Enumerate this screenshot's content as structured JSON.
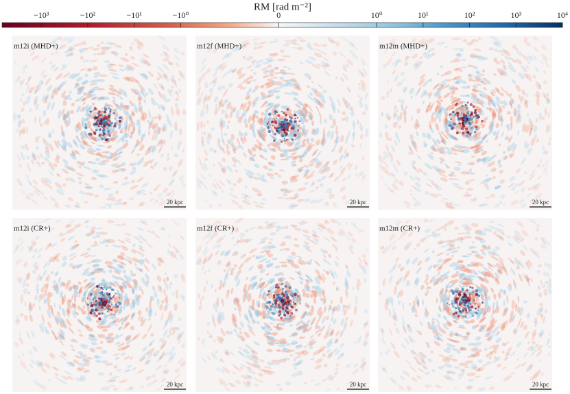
{
  "colorbar": {
    "label": "RM [rad m⁻²]",
    "lim": [
      -7000,
      10000
    ],
    "linthresh": 1,
    "linscale": 2.11,
    "ticks": [
      {
        "value": -1000,
        "label": "−10³"
      },
      {
        "value": -100,
        "label": "−10²"
      },
      {
        "value": -10,
        "label": "−10¹"
      },
      {
        "value": -1,
        "label": "−10⁰"
      },
      0,
      {
        "value": 1,
        "label": "10⁰"
      },
      {
        "value": 10,
        "label": "10¹"
      },
      {
        "value": 100,
        "label": "10²"
      },
      {
        "value": 1000,
        "label": "10³"
      },
      {
        "value": 10000,
        "label": "10⁴"
      }
    ]
  },
  "panels": [
    {
      "label": "m12i (MHD+)",
      "scale_bar": "20 kpc"
    },
    {
      "label": "m12f (MHD+)",
      "scale_bar": "20 kpc"
    },
    {
      "label": "m12m (MHD+)",
      "scale_bar": "20 kpc"
    },
    {
      "label": "m12i (CR+)",
      "scale_bar": "20 kpc"
    },
    {
      "label": "m12f (CR+)",
      "scale_bar": "20 kpc"
    },
    {
      "label": "m12m (CR+)",
      "scale_bar": "20 kpc"
    }
  ]
}
